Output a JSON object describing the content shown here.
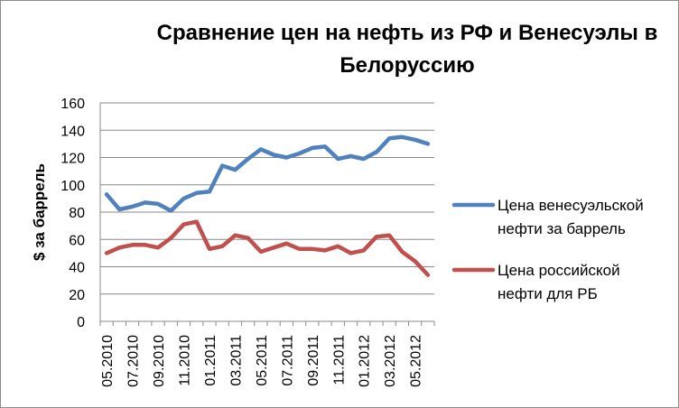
{
  "chart_data": {
    "type": "line",
    "title": "Сравнение цен на нефть из РФ и Венесуэлы в Белоруссию",
    "xlabel": "",
    "ylabel": "$ за баррель",
    "ylim": [
      0,
      160
    ],
    "yticks": [
      0,
      20,
      40,
      60,
      80,
      100,
      120,
      140,
      160
    ],
    "grid": "horizontal",
    "legend_position": "right",
    "x": [
      "05.2010",
      "06.2010",
      "07.2010",
      "08.2010",
      "09.2010",
      "10.2010",
      "11.2010",
      "12.2010",
      "01.2011",
      "02.2011",
      "03.2011",
      "04.2011",
      "05.2011",
      "06.2011",
      "07.2011",
      "08.2011",
      "09.2011",
      "10.2011",
      "11.2011",
      "12.2011",
      "01.2012",
      "02.2012",
      "03.2012",
      "04.2012",
      "05.2012",
      "06.2012"
    ],
    "xtick_labels": [
      "05.2010",
      "07.2010",
      "09.2010",
      "11.2010",
      "01.2011",
      "03.2011",
      "05.2011",
      "07.2011",
      "09.2011",
      "11.2011",
      "01.2012",
      "03.2012",
      "05.2012"
    ],
    "series": [
      {
        "name_lines": [
          "Цена венесуэльской",
          "нефти за баррель"
        ],
        "color": "#4f81bd",
        "values": [
          93,
          82,
          84,
          87,
          86,
          81,
          90,
          94,
          95,
          114,
          111,
          119,
          126,
          122,
          120,
          123,
          127,
          128,
          119,
          121,
          119,
          124,
          134,
          135,
          133,
          130
        ]
      },
      {
        "name_lines": [
          "Цена российской",
          "нефти для РБ"
        ],
        "color": "#c0504d",
        "values": [
          50,
          54,
          56,
          56,
          54,
          61,
          71,
          73,
          53,
          55,
          63,
          61,
          51,
          54,
          57,
          53,
          53,
          52,
          55,
          50,
          52,
          62,
          63,
          51,
          44,
          34
        ]
      }
    ]
  }
}
